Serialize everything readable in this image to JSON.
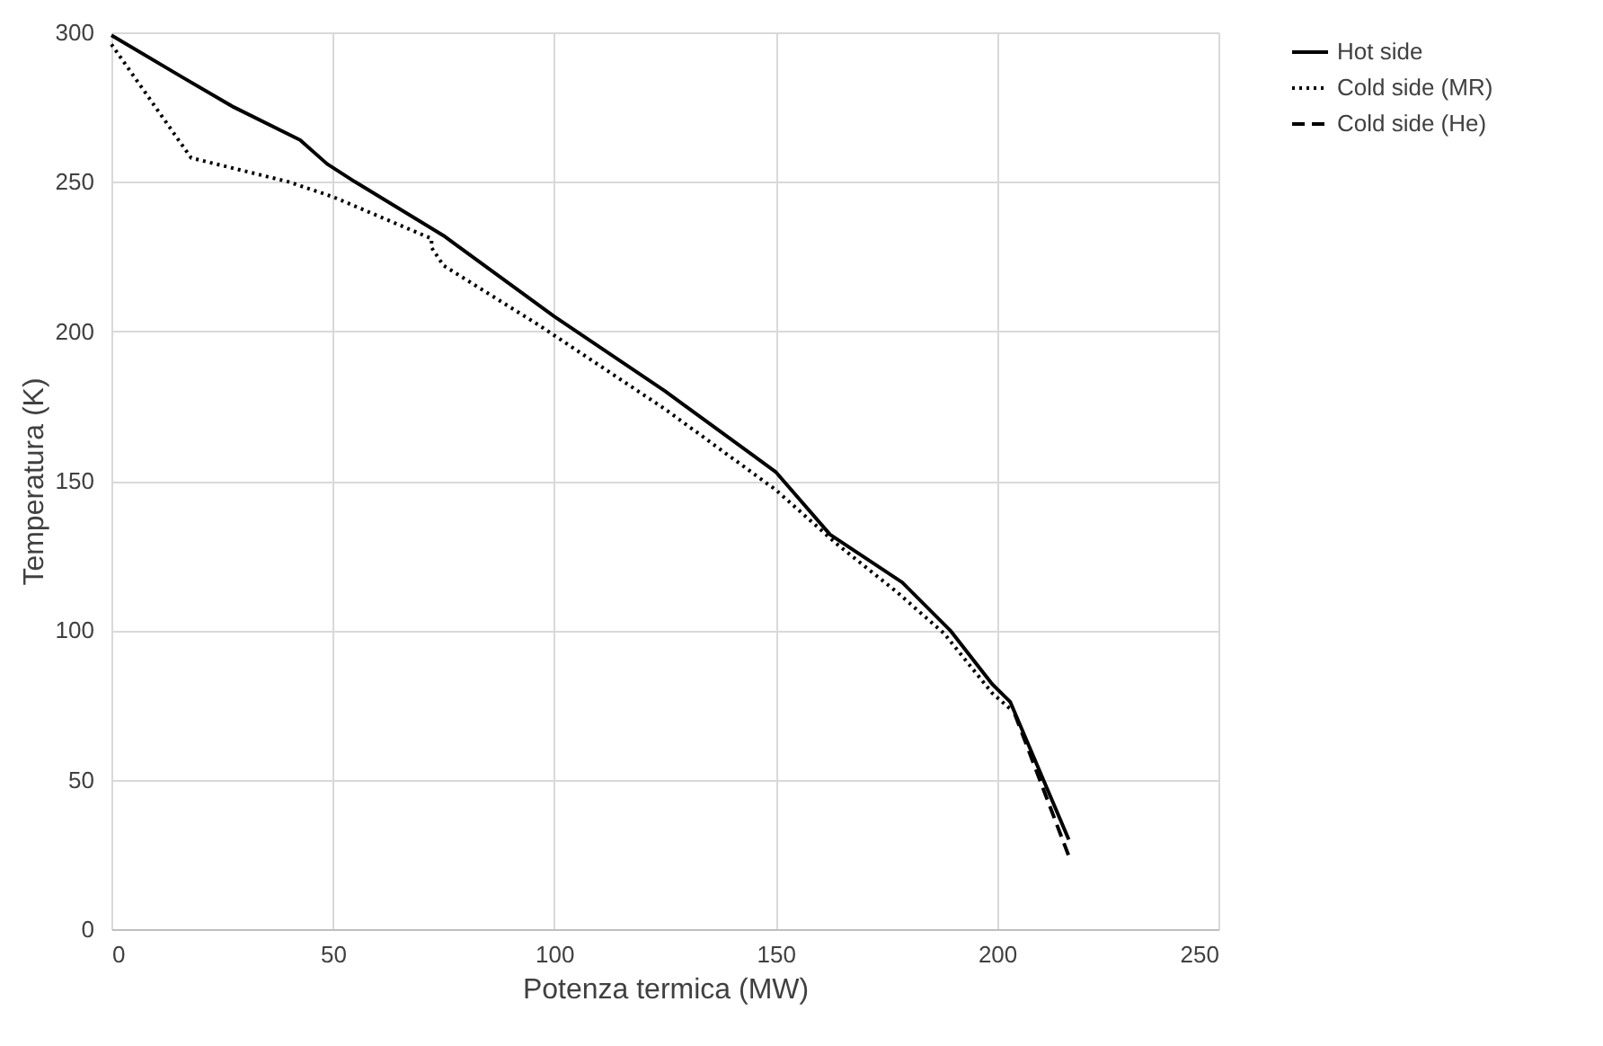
{
  "chart_data": {
    "type": "line",
    "xlabel": "Potenza termica (MW)",
    "ylabel": "Temperatura (K)",
    "xlim": [
      0,
      250
    ],
    "ylim": [
      0,
      300
    ],
    "xticks": [
      0,
      50,
      100,
      150,
      200,
      250
    ],
    "yticks": [
      0,
      50,
      100,
      150,
      200,
      250,
      300
    ],
    "grid": true,
    "legend": "right",
    "marker": "none",
    "series": [
      {
        "name": "Hot side",
        "color": "#000000",
        "line_style": "solid",
        "x": [
          0,
          16,
          27.6,
          42.6,
          48.7,
          55,
          75,
          100,
          125,
          150,
          162.3,
          178.6,
          189.4,
          198.9,
          203,
          216.2
        ],
        "values": [
          299,
          285,
          275,
          264,
          256,
          250,
          232,
          205,
          180,
          153,
          132,
          116,
          100,
          82,
          76,
          30
        ]
      },
      {
        "name": "Cold side (MR)",
        "color": "#000000",
        "line_style": "dotted",
        "x": [
          0,
          18,
          40,
          50,
          72.3,
          72.3,
          75,
          96.6,
          125,
          150,
          163.7,
          177.2,
          188,
          198.9,
          203.5
        ],
        "values": [
          296,
          258,
          250,
          245,
          231,
          228,
          222,
          202,
          174,
          147,
          129,
          113,
          99,
          79,
          73
        ]
      },
      {
        "name": "Cold side (He)",
        "color": "#000000",
        "line_style": "dashed",
        "x": [
          204,
          216.2
        ],
        "values": [
          72,
          24.5
        ]
      }
    ]
  }
}
